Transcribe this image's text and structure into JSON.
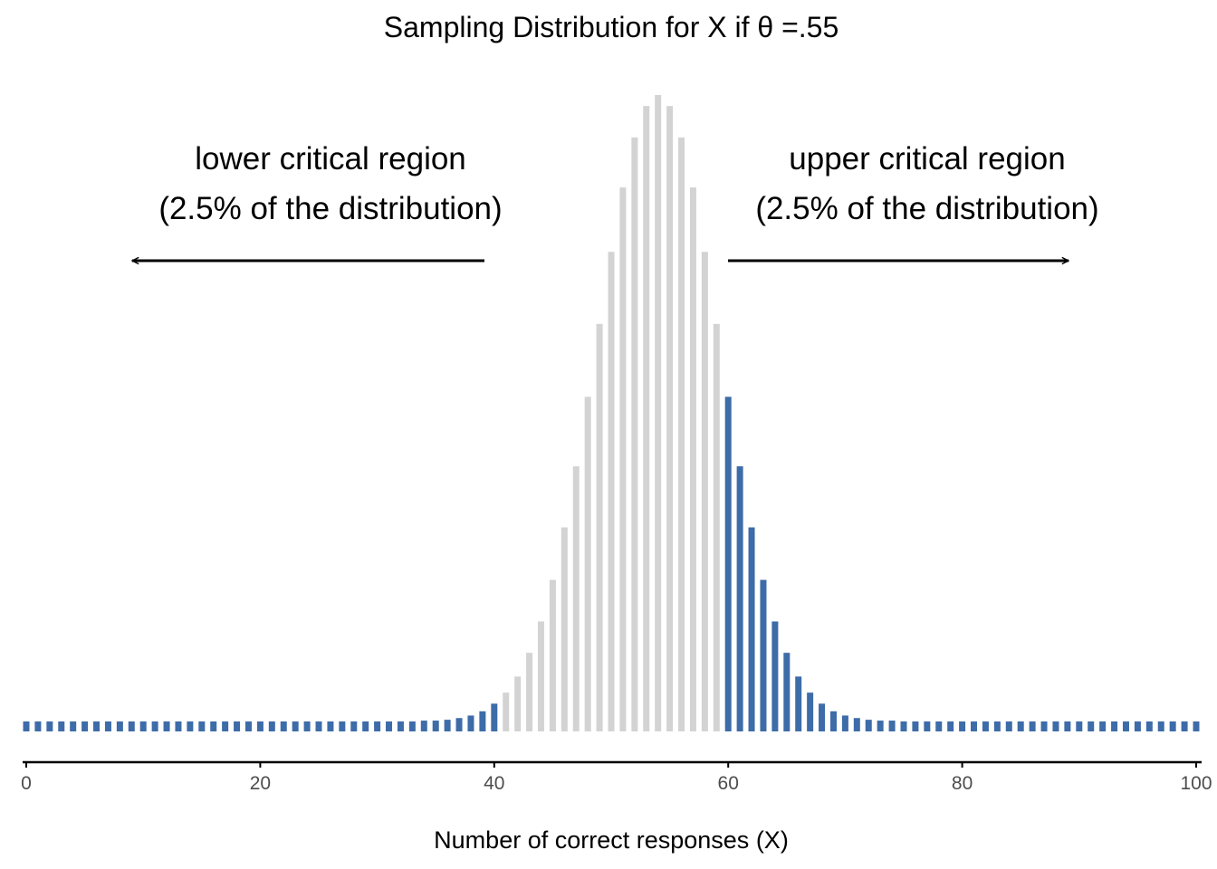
{
  "chart_data": {
    "type": "bar",
    "title": "Sampling Distribution for X if θ =.55",
    "xlabel": "Number of correct responses (X)",
    "ylabel": "",
    "x_ticks": [
      0,
      20,
      40,
      60,
      80,
      100
    ],
    "xlim": [
      0,
      100
    ],
    "n": 100,
    "theta": 0.55,
    "grid": false,
    "x": [
      0,
      1,
      2,
      3,
      4,
      5,
      6,
      7,
      8,
      9,
      10,
      11,
      12,
      13,
      14,
      15,
      16,
      17,
      18,
      19,
      20,
      21,
      22,
      23,
      24,
      25,
      26,
      27,
      28,
      29,
      30,
      31,
      32,
      33,
      34,
      35,
      36,
      37,
      38,
      39,
      40,
      41,
      42,
      43,
      44,
      45,
      46,
      47,
      48,
      49,
      50,
      51,
      52,
      53,
      54,
      55,
      56,
      57,
      58,
      59,
      60,
      61,
      62,
      63,
      64,
      65,
      66,
      67,
      68,
      69,
      70,
      71,
      72,
      73,
      74,
      75,
      76,
      77,
      78,
      79,
      80,
      81,
      82,
      83,
      84,
      85,
      86,
      87,
      88,
      89,
      90,
      91,
      92,
      93,
      94,
      95,
      96,
      97,
      98,
      99,
      100
    ],
    "values": [
      0,
      0,
      0,
      0,
      0,
      0,
      0,
      0,
      0,
      0,
      0,
      0,
      0,
      0,
      0,
      0,
      0,
      0,
      0,
      0,
      0,
      0,
      0,
      0,
      0,
      0,
      0,
      0,
      0,
      0,
      0,
      0,
      0,
      0,
      0.0001,
      0.0001,
      0.0002,
      0.0004,
      0.0007,
      0.0012,
      0.0021,
      0.0034,
      0.0053,
      0.0081,
      0.0118,
      0.0167,
      0.0229,
      0.0301,
      0.0383,
      0.0469,
      0.0554,
      0.063,
      0.0689,
      0.0726,
      0.0739,
      0.0726,
      0.0689,
      0.063,
      0.0554,
      0.0469,
      0.0383,
      0.0301,
      0.0229,
      0.0167,
      0.0118,
      0.0081,
      0.0053,
      0.0034,
      0.0021,
      0.0012,
      0.0007,
      0.0004,
      0.0002,
      0.0001,
      0.0001,
      0,
      0,
      0,
      0,
      0,
      0,
      0,
      0,
      0,
      0,
      0,
      0,
      0,
      0,
      0,
      0,
      0,
      0,
      0,
      0,
      0,
      0,
      0,
      0,
      0,
      0
    ],
    "critical_region": {
      "lower_max": 40,
      "upper_min": 60
    },
    "colors": {
      "critical": "#3d6ca8",
      "non_critical": "#d3d3d3",
      "axis": "#000000"
    },
    "annotations": {
      "lower": {
        "line1": "lower critical region",
        "line2": "(2.5% of the distribution)"
      },
      "upper": {
        "line1": "upper critical region",
        "line2": "(2.5% of the distribution)"
      }
    }
  }
}
